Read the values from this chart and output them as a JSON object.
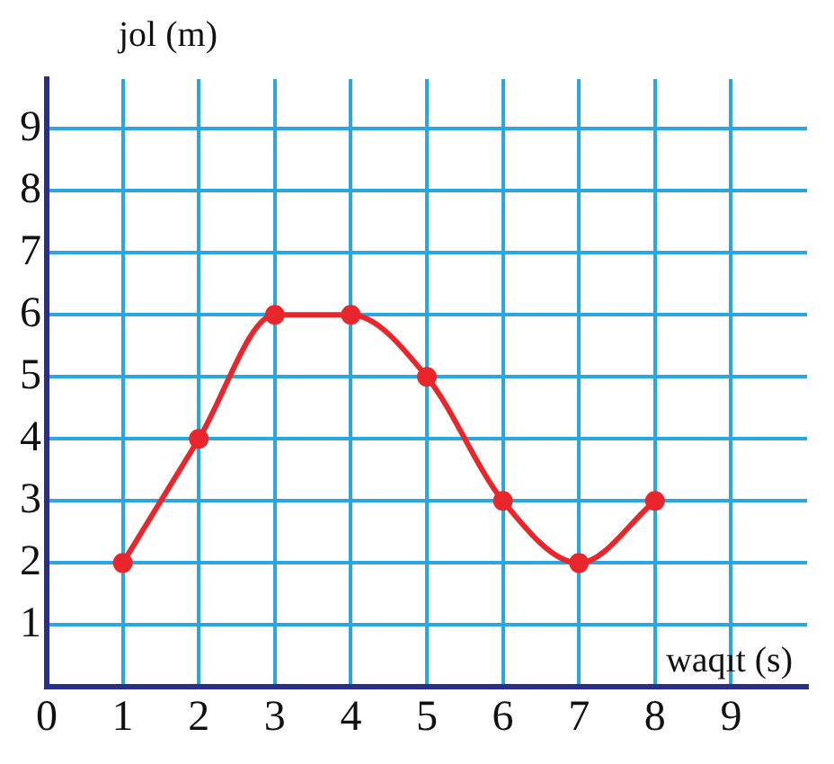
{
  "chart_data": {
    "type": "line",
    "xlabel": "waqıt (s)",
    "ylabel": "jol (m)",
    "x": [
      1,
      2,
      3,
      4,
      5,
      6,
      7,
      8
    ],
    "series": [
      {
        "color": "#e8262b",
        "values": [
          2,
          4,
          6,
          6,
          5,
          3,
          2,
          3
        ]
      }
    ],
    "xlim": [
      0,
      10
    ],
    "ylim": [
      0,
      9.8
    ],
    "xticks": [
      0,
      1,
      2,
      3,
      4,
      5,
      6,
      7,
      8,
      9
    ],
    "yticks": [
      1,
      2,
      3,
      4,
      5,
      6,
      7,
      8,
      9
    ],
    "grid": true,
    "legend": false,
    "marker": "circle",
    "line_style": "solid"
  }
}
